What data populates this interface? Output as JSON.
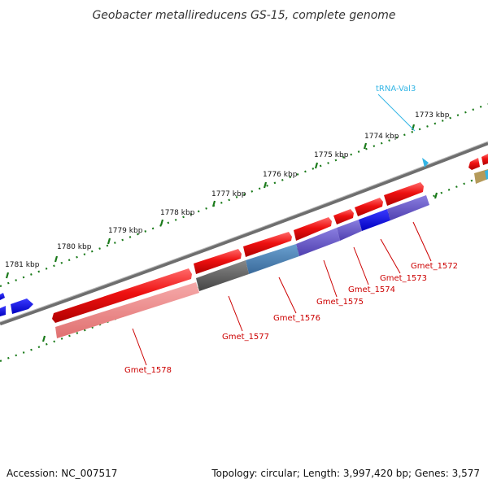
{
  "title": "Geobacter metallireducens GS-15, complete genome",
  "footer": {
    "accession": "Accession: NC_007517",
    "summary": "Topology: circular; Length: 3,997,420 bp; Genes: 3,577"
  },
  "ticks": [
    "1773 kbp",
    "1774 kbp",
    "1775 kbp",
    "1776 kbp",
    "1777 kbp",
    "1778 kbp",
    "1779 kbp",
    "1780 kbp",
    "1781 kbp"
  ],
  "genes": [
    "Gmet_1572",
    "Gmet_1573",
    "Gmet_1574",
    "Gmet_1575",
    "Gmet_1576",
    "Gmet_1577",
    "Gmet_1578"
  ],
  "trna": "tRNA-Val3",
  "colors": {
    "cds": "#ee1111",
    "cog_pink": "#f08888",
    "cog_blue": "#6a5acd",
    "cog_gray": "#5a5a5a",
    "cog_steel": "#4a7fb5",
    "backbone": "#7a7a7a",
    "ticks": "#1a7a1a",
    "trna": "#33b5e5"
  }
}
